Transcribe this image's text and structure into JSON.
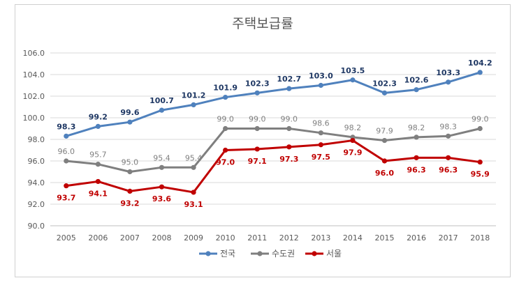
{
  "chart_data": {
    "type": "line",
    "title": "주택보급률",
    "xlabel": "",
    "ylabel": "",
    "ylim": [
      90.0,
      106.0
    ],
    "yticks": [
      "90.0",
      "92.0",
      "94.0",
      "96.0",
      "98.0",
      "100.0",
      "102.0",
      "104.0",
      "106.0"
    ],
    "categories": [
      "2005",
      "2006",
      "2007",
      "2008",
      "2009",
      "2010",
      "2011",
      "2012",
      "2013",
      "2014",
      "2015",
      "2016",
      "2017",
      "2018"
    ],
    "grid": true,
    "legend": "bottom",
    "series": [
      {
        "name": "전국",
        "color": "#4f81bd",
        "label_color": "#1f3864",
        "label_position": "above",
        "values": [
          98.3,
          99.2,
          99.6,
          100.7,
          101.2,
          101.9,
          102.3,
          102.7,
          103.0,
          103.5,
          102.3,
          102.6,
          103.3,
          104.2
        ],
        "labels": [
          "98.3",
          "99.2",
          "99.6",
          "100.7",
          "101.2",
          "101.9",
          "102.3",
          "102.7",
          "103.0",
          "103.5",
          "102.3",
          "102.6",
          "103.3",
          "104.2"
        ]
      },
      {
        "name": "수도권",
        "color": "#7f7f7f",
        "label_color": "#808080",
        "label_position": "above",
        "values": [
          96.0,
          95.7,
          95.0,
          95.4,
          95.4,
          99.0,
          99.0,
          99.0,
          98.6,
          98.2,
          97.9,
          98.2,
          98.3,
          99.0
        ],
        "labels": [
          "96.0",
          "95.7",
          "95.0",
          "95.4",
          "95.4",
          "99.0",
          "99.0",
          "99.0",
          "98.6",
          "98.2",
          "97.9",
          "98.2",
          "98.3",
          "99.0"
        ]
      },
      {
        "name": "서울",
        "color": "#c00000",
        "label_color": "#c00000",
        "label_position": "below",
        "values": [
          93.7,
          94.1,
          93.2,
          93.6,
          93.1,
          97.0,
          97.1,
          97.3,
          97.5,
          97.9,
          96.0,
          96.3,
          96.3,
          95.9
        ],
        "labels": [
          "93.7",
          "94.1",
          "93.2",
          "93.6",
          "93.1",
          "97.0",
          "97.1",
          "97.3",
          "97.5",
          "97.9",
          "96.0",
          "96.3",
          "96.3",
          "95.9"
        ]
      }
    ]
  }
}
